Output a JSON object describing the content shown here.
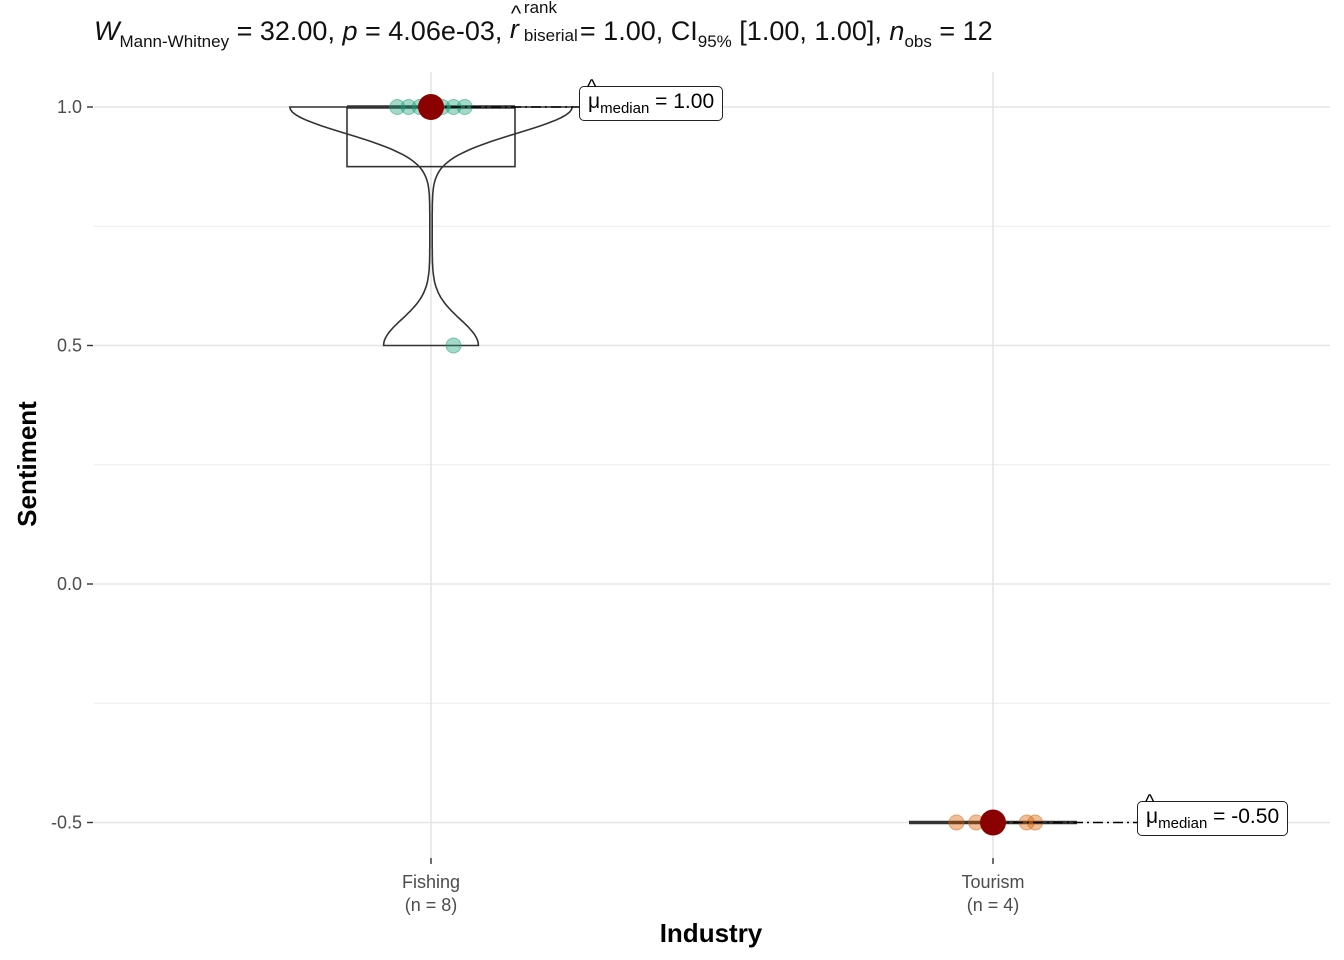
{
  "chart_data": {
    "type": "violin-box-scatter",
    "subtitle": {
      "w_symbol": "W",
      "w_sub": "Mann-Whitney",
      "w_value": "= 32.00,",
      "p_symbol": "p",
      "p_value": "= 4.06e-03,",
      "r_symbol": "r",
      "r_sup": "rank",
      "r_sub": "biserial",
      "r_value": "= 1.00,",
      "ci_symbol": "CI",
      "ci_sub": "95%",
      "ci_value": "[1.00, 1.00],",
      "n_symbol": "n",
      "n_sub": "obs",
      "n_value": "= 12"
    },
    "xlabel": "Industry",
    "ylabel": "Sentiment",
    "ylim": [
      -0.55,
      1.075
    ],
    "y_ticks": [
      1.0,
      0.5,
      0.0,
      -0.5
    ],
    "y_tick_labels": [
      "1.0",
      "0.5",
      "0.0",
      "-0.5"
    ],
    "grid": true,
    "groups": [
      {
        "category": "Fishing",
        "n_label": "(n = 8)",
        "color": "#1b9e77",
        "points": [
          1.0,
          1.0,
          1.0,
          1.0,
          1.0,
          1.0,
          1.0,
          0.5
        ],
        "jitter": [
          -0.06,
          -0.04,
          0.0,
          0.02,
          0.04,
          0.06,
          -0.02,
          0.04
        ],
        "box": {
          "q1": 0.875,
          "median": 1.0,
          "q3": 1.0
        },
        "median": 1.0,
        "median_label": {
          "mu": "μ",
          "sub": "median",
          "value": "= 1.00"
        }
      },
      {
        "category": "Tourism",
        "n_label": "(n = 4)",
        "color": "#d95f02",
        "points": [
          -0.5,
          -0.5,
          -0.5,
          -0.5
        ],
        "jitter": [
          -0.065,
          -0.03,
          0.06,
          0.075
        ],
        "box": {
          "q1": -0.5,
          "median": -0.5,
          "q3": -0.5
        },
        "median": -0.5,
        "median_label": {
          "mu": "μ",
          "sub": "median",
          "value": "= -0.50"
        }
      }
    ],
    "median_point_color": "#8b0000"
  }
}
